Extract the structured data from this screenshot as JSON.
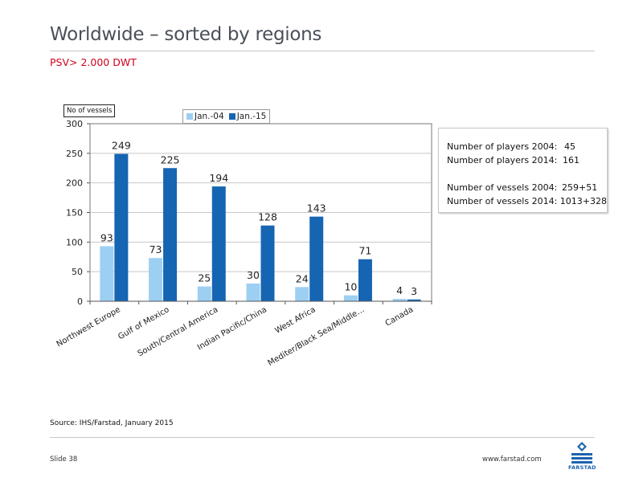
{
  "slide": {
    "title": "Worldwide – sorted by regions",
    "subtitle": "PSV> 2.000 DWT",
    "source": "Source: IHS/Farstad, January 2015",
    "slide_number": "Slide 38",
    "website": "www.farstad.com",
    "logo_text": "FARSTAD"
  },
  "info_box": {
    "players_2004_label": "Number of players 2004:",
    "players_2004_value": "45",
    "players_2014_label": "Number of players 2014:",
    "players_2014_value": "161",
    "vessels_2004_label": "Number of vessels 2004:",
    "vessels_2004_value": "259+51",
    "vessels_2014_label": "Number of vessels 2014:",
    "vessels_2014_value": "1013+328"
  },
  "chart_data": {
    "type": "bar",
    "ylabel": "No of vessels",
    "xlabel": "",
    "ylim": [
      0,
      300
    ],
    "yticks": [
      0,
      50,
      100,
      150,
      200,
      250,
      300
    ],
    "grid": true,
    "legend_position": "top-center",
    "categories": [
      "Northwest Europe",
      "Gulf of Mexico",
      "South/Central America",
      "Indian Pacific/China",
      "West Africa",
      "Mediter/Black Sea/Middle…",
      "Canada"
    ],
    "series": [
      {
        "name": "Jan.-04",
        "color": "#9dcff3",
        "values": [
          93,
          73,
          25,
          30,
          24,
          10,
          4
        ]
      },
      {
        "name": "Jan.-15",
        "color": "#1565b3",
        "values": [
          249,
          225,
          194,
          128,
          143,
          71,
          3
        ]
      }
    ]
  }
}
